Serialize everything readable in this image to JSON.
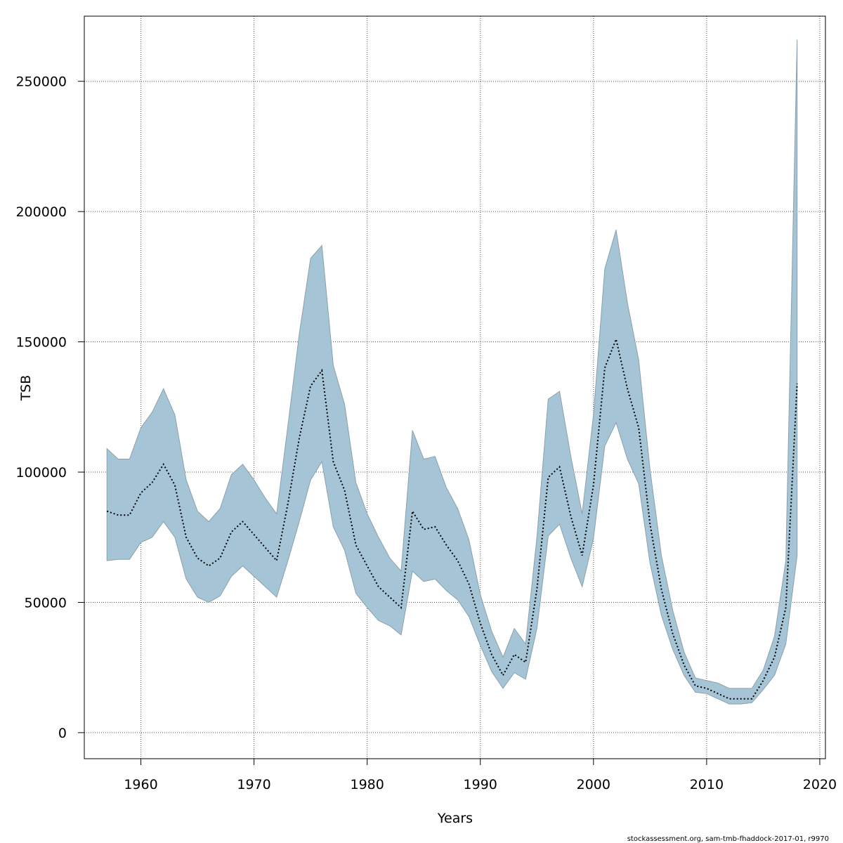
{
  "chart_data": {
    "type": "line",
    "title": "",
    "xlabel": "Years",
    "ylabel": "TSB",
    "xlim": [
      1955,
      2020.5
    ],
    "ylim": [
      -10000,
      275000
    ],
    "xticks": [
      1960,
      1970,
      1980,
      1990,
      2000,
      2010,
      2020
    ],
    "yticks": [
      0,
      50000,
      100000,
      150000,
      200000,
      250000
    ],
    "grid": true,
    "colors": {
      "band_fill": "#a5c5d6",
      "band_stroke": "#8aa0ad",
      "estimate_line": "#000000"
    },
    "x": [
      1957,
      1958,
      1959,
      1960,
      1961,
      1962,
      1963,
      1964,
      1965,
      1966,
      1967,
      1968,
      1969,
      1970,
      1971,
      1972,
      1973,
      1974,
      1975,
      1976,
      1977,
      1978,
      1979,
      1980,
      1981,
      1982,
      1983,
      1984,
      1985,
      1986,
      1987,
      1988,
      1989,
      1990,
      1991,
      1992,
      1993,
      1994,
      1995,
      1996,
      1997,
      1998,
      1999,
      2000,
      2001,
      2002,
      2003,
      2004,
      2005,
      2006,
      2007,
      2008,
      2009,
      2010,
      2011,
      2012,
      2013,
      2014,
      2015,
      2016,
      2017,
      2018
    ],
    "series": [
      {
        "type": "line",
        "style": "dotted",
        "values": [
          85000,
          83500,
          83500,
          92000,
          96000,
          103000,
          95000,
          75000,
          67000,
          64000,
          67000,
          77000,
          81000,
          76000,
          71000,
          66000,
          88000,
          113000,
          133000,
          139000,
          104000,
          93000,
          72000,
          64000,
          56000,
          52000,
          48000,
          85000,
          78000,
          79000,
          72000,
          66000,
          57000,
          42000,
          30000,
          22000,
          30000,
          27000,
          55000,
          98000,
          102000,
          83000,
          68000,
          95000,
          140000,
          151000,
          132000,
          117000,
          80000,
          55000,
          38000,
          26000,
          18000,
          17000,
          15000,
          13000,
          13000,
          13000,
          20000,
          29000,
          48000,
          134000
        ]
      },
      {
        "type": "band",
        "upper": [
          109000,
          105000,
          105000,
          117000,
          123000,
          132000,
          122000,
          97000,
          85000,
          81000,
          86000,
          99000,
          103000,
          97000,
          90000,
          84000,
          118000,
          153000,
          182000,
          187000,
          141000,
          126000,
          96000,
          84000,
          75000,
          67000,
          62000,
          116000,
          105000,
          106000,
          94000,
          86000,
          74000,
          53000,
          39000,
          29000,
          40000,
          34000,
          75000,
          128000,
          131000,
          106000,
          84000,
          122000,
          178000,
          193000,
          165000,
          143000,
          101000,
          68000,
          47000,
          31000,
          21000,
          20000,
          19000,
          17000,
          17000,
          17000,
          24000,
          37000,
          66000,
          266000
        ],
        "lower": [
          66000,
          66500,
          66500,
          73000,
          75000,
          81000,
          75000,
          59000,
          52000,
          50000,
          52500,
          60000,
          64000,
          60000,
          56000,
          52000,
          66000,
          81000,
          97000,
          104000,
          79000,
          70000,
          53500,
          48000,
          43000,
          41000,
          37500,
          62000,
          58000,
          59000,
          54500,
          51000,
          44500,
          33500,
          23500,
          17000,
          23000,
          20500,
          40000,
          75500,
          80000,
          67000,
          56000,
          74500,
          110000,
          119000,
          105000,
          95500,
          65000,
          45000,
          32000,
          22000,
          15500,
          15000,
          13000,
          11000,
          11000,
          11500,
          16500,
          22000,
          34000,
          68000
        ]
      }
    ]
  },
  "footer": {
    "credit": "stockassessment.org, sam-tmb-fhaddock-2017-01, r9970"
  }
}
